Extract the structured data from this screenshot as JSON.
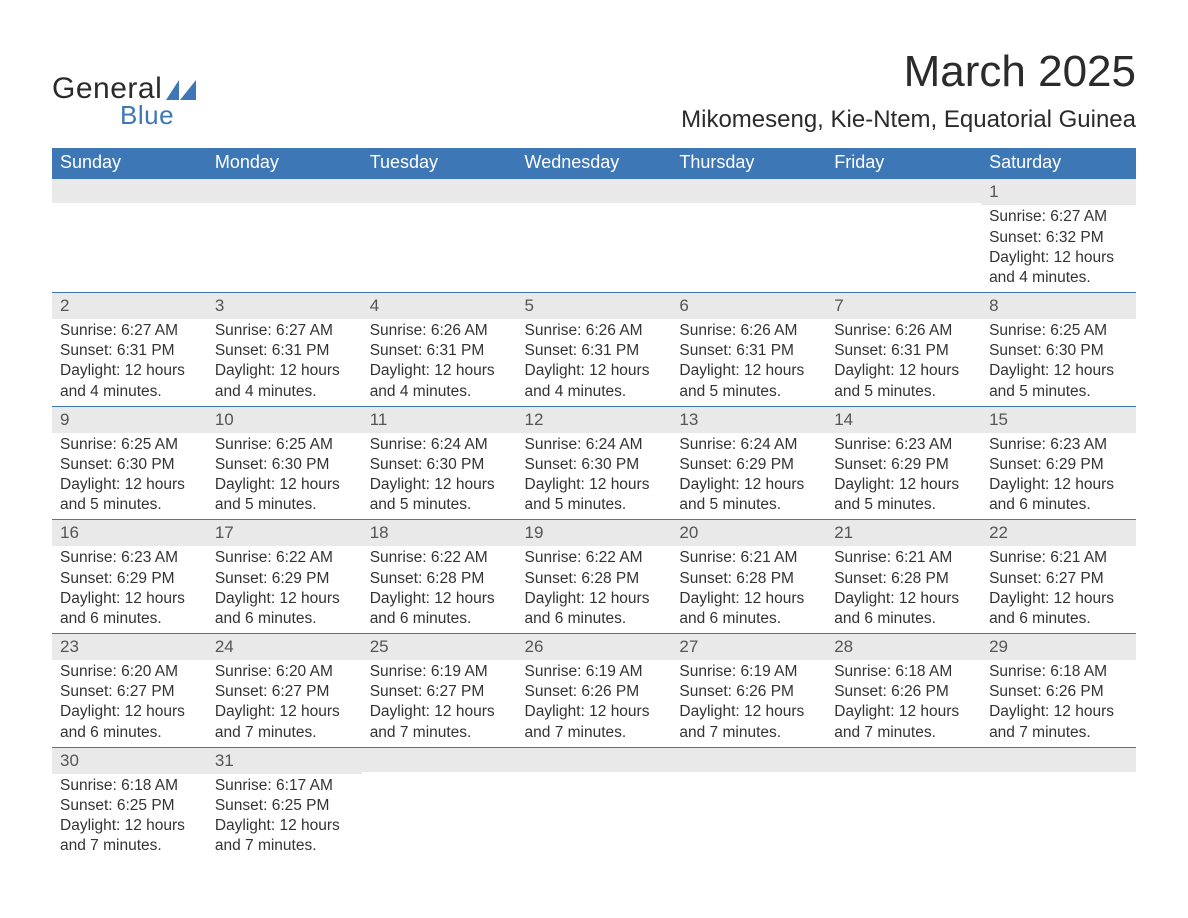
{
  "logo": {
    "text1": "General",
    "text2": "Blue",
    "triangle_color": "#3d77b6"
  },
  "title": "March 2025",
  "location": "Mikomeseng, Kie-Ntem, Equatorial Guinea",
  "colors": {
    "header_bg": "#3d77b6",
    "header_text": "#ffffff",
    "daynum_bg": "#e9e9e9",
    "border": "#3d77b6",
    "text": "#333333",
    "background": "#ffffff"
  },
  "fonts": {
    "title_size_pt": 33,
    "location_size_pt": 18,
    "header_size_pt": 14,
    "body_size_pt": 12
  },
  "day_headers": [
    "Sunday",
    "Monday",
    "Tuesday",
    "Wednesday",
    "Thursday",
    "Friday",
    "Saturday"
  ],
  "weeks": [
    [
      null,
      null,
      null,
      null,
      null,
      null,
      {
        "n": "1",
        "sr": "Sunrise: 6:27 AM",
        "ss": "Sunset: 6:32 PM",
        "dl": "Daylight: 12 hours and 4 minutes."
      }
    ],
    [
      {
        "n": "2",
        "sr": "Sunrise: 6:27 AM",
        "ss": "Sunset: 6:31 PM",
        "dl": "Daylight: 12 hours and 4 minutes."
      },
      {
        "n": "3",
        "sr": "Sunrise: 6:27 AM",
        "ss": "Sunset: 6:31 PM",
        "dl": "Daylight: 12 hours and 4 minutes."
      },
      {
        "n": "4",
        "sr": "Sunrise: 6:26 AM",
        "ss": "Sunset: 6:31 PM",
        "dl": "Daylight: 12 hours and 4 minutes."
      },
      {
        "n": "5",
        "sr": "Sunrise: 6:26 AM",
        "ss": "Sunset: 6:31 PM",
        "dl": "Daylight: 12 hours and 4 minutes."
      },
      {
        "n": "6",
        "sr": "Sunrise: 6:26 AM",
        "ss": "Sunset: 6:31 PM",
        "dl": "Daylight: 12 hours and 5 minutes."
      },
      {
        "n": "7",
        "sr": "Sunrise: 6:26 AM",
        "ss": "Sunset: 6:31 PM",
        "dl": "Daylight: 12 hours and 5 minutes."
      },
      {
        "n": "8",
        "sr": "Sunrise: 6:25 AM",
        "ss": "Sunset: 6:30 PM",
        "dl": "Daylight: 12 hours and 5 minutes."
      }
    ],
    [
      {
        "n": "9",
        "sr": "Sunrise: 6:25 AM",
        "ss": "Sunset: 6:30 PM",
        "dl": "Daylight: 12 hours and 5 minutes."
      },
      {
        "n": "10",
        "sr": "Sunrise: 6:25 AM",
        "ss": "Sunset: 6:30 PM",
        "dl": "Daylight: 12 hours and 5 minutes."
      },
      {
        "n": "11",
        "sr": "Sunrise: 6:24 AM",
        "ss": "Sunset: 6:30 PM",
        "dl": "Daylight: 12 hours and 5 minutes."
      },
      {
        "n": "12",
        "sr": "Sunrise: 6:24 AM",
        "ss": "Sunset: 6:30 PM",
        "dl": "Daylight: 12 hours and 5 minutes."
      },
      {
        "n": "13",
        "sr": "Sunrise: 6:24 AM",
        "ss": "Sunset: 6:29 PM",
        "dl": "Daylight: 12 hours and 5 minutes."
      },
      {
        "n": "14",
        "sr": "Sunrise: 6:23 AM",
        "ss": "Sunset: 6:29 PM",
        "dl": "Daylight: 12 hours and 5 minutes."
      },
      {
        "n": "15",
        "sr": "Sunrise: 6:23 AM",
        "ss": "Sunset: 6:29 PM",
        "dl": "Daylight: 12 hours and 6 minutes."
      }
    ],
    [
      {
        "n": "16",
        "sr": "Sunrise: 6:23 AM",
        "ss": "Sunset: 6:29 PM",
        "dl": "Daylight: 12 hours and 6 minutes."
      },
      {
        "n": "17",
        "sr": "Sunrise: 6:22 AM",
        "ss": "Sunset: 6:29 PM",
        "dl": "Daylight: 12 hours and 6 minutes."
      },
      {
        "n": "18",
        "sr": "Sunrise: 6:22 AM",
        "ss": "Sunset: 6:28 PM",
        "dl": "Daylight: 12 hours and 6 minutes."
      },
      {
        "n": "19",
        "sr": "Sunrise: 6:22 AM",
        "ss": "Sunset: 6:28 PM",
        "dl": "Daylight: 12 hours and 6 minutes."
      },
      {
        "n": "20",
        "sr": "Sunrise: 6:21 AM",
        "ss": "Sunset: 6:28 PM",
        "dl": "Daylight: 12 hours and 6 minutes."
      },
      {
        "n": "21",
        "sr": "Sunrise: 6:21 AM",
        "ss": "Sunset: 6:28 PM",
        "dl": "Daylight: 12 hours and 6 minutes."
      },
      {
        "n": "22",
        "sr": "Sunrise: 6:21 AM",
        "ss": "Sunset: 6:27 PM",
        "dl": "Daylight: 12 hours and 6 minutes."
      }
    ],
    [
      {
        "n": "23",
        "sr": "Sunrise: 6:20 AM",
        "ss": "Sunset: 6:27 PM",
        "dl": "Daylight: 12 hours and 6 minutes."
      },
      {
        "n": "24",
        "sr": "Sunrise: 6:20 AM",
        "ss": "Sunset: 6:27 PM",
        "dl": "Daylight: 12 hours and 7 minutes."
      },
      {
        "n": "25",
        "sr": "Sunrise: 6:19 AM",
        "ss": "Sunset: 6:27 PM",
        "dl": "Daylight: 12 hours and 7 minutes."
      },
      {
        "n": "26",
        "sr": "Sunrise: 6:19 AM",
        "ss": "Sunset: 6:26 PM",
        "dl": "Daylight: 12 hours and 7 minutes."
      },
      {
        "n": "27",
        "sr": "Sunrise: 6:19 AM",
        "ss": "Sunset: 6:26 PM",
        "dl": "Daylight: 12 hours and 7 minutes."
      },
      {
        "n": "28",
        "sr": "Sunrise: 6:18 AM",
        "ss": "Sunset: 6:26 PM",
        "dl": "Daylight: 12 hours and 7 minutes."
      },
      {
        "n": "29",
        "sr": "Sunrise: 6:18 AM",
        "ss": "Sunset: 6:26 PM",
        "dl": "Daylight: 12 hours and 7 minutes."
      }
    ],
    [
      {
        "n": "30",
        "sr": "Sunrise: 6:18 AM",
        "ss": "Sunset: 6:25 PM",
        "dl": "Daylight: 12 hours and 7 minutes."
      },
      {
        "n": "31",
        "sr": "Sunrise: 6:17 AM",
        "ss": "Sunset: 6:25 PM",
        "dl": "Daylight: 12 hours and 7 minutes."
      },
      null,
      null,
      null,
      null,
      null
    ]
  ]
}
